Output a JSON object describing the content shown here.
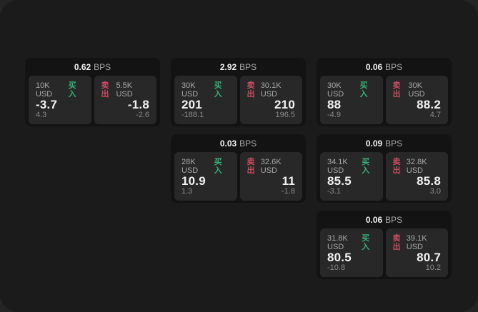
{
  "labels": {
    "bps": "BPS",
    "buy": "买入",
    "sell": "卖出"
  },
  "colors": {
    "buy_green": "#35b179",
    "sell_red": "#cc4a63",
    "page_bg": "#242424",
    "panel_bg": "#1b1b1b",
    "card_bg": "#131313",
    "tile_bg": "#282828",
    "text_primary": "#f2f2f2",
    "text_secondary": "#a8a8a8",
    "text_muted": "#8a8a8a"
  },
  "cards": [
    {
      "bps": "0.62",
      "grid": {
        "row": 1,
        "col": 1
      },
      "buy": {
        "notional": "10K USD",
        "price": "-3.7",
        "delta": "4.3"
      },
      "sell": {
        "notional": "5.5K USD",
        "price": "-1.8",
        "delta": "-2.6"
      }
    },
    {
      "bps": "2.92",
      "grid": {
        "row": 1,
        "col": 2
      },
      "buy": {
        "notional": "30K USD",
        "price": "201",
        "delta": "-188.1"
      },
      "sell": {
        "notional": "30.1K USD",
        "price": "210",
        "delta": "196.5"
      }
    },
    {
      "bps": "0.06",
      "grid": {
        "row": 1,
        "col": 3
      },
      "buy": {
        "notional": "30K USD",
        "price": "88",
        "delta": "-4.9"
      },
      "sell": {
        "notional": "30K USD",
        "price": "88.2",
        "delta": "4.7"
      }
    },
    {
      "bps": "0.03",
      "grid": {
        "row": 2,
        "col": 2
      },
      "buy": {
        "notional": "28K USD",
        "price": "10.9",
        "delta": "1.3"
      },
      "sell": {
        "notional": "32.6K USD",
        "price": "11",
        "delta": "-1.8"
      }
    },
    {
      "bps": "0.09",
      "grid": {
        "row": 2,
        "col": 3
      },
      "buy": {
        "notional": "34.1K USD",
        "price": "85.5",
        "delta": "-3.1"
      },
      "sell": {
        "notional": "32.8K USD",
        "price": "85.8",
        "delta": "3.0"
      }
    },
    {
      "bps": "0.06",
      "grid": {
        "row": 3,
        "col": 3
      },
      "buy": {
        "notional": "31.8K USD",
        "price": "80.5",
        "delta": "-10.8"
      },
      "sell": {
        "notional": "39.1K USD",
        "price": "80.7",
        "delta": "10.2"
      }
    }
  ]
}
